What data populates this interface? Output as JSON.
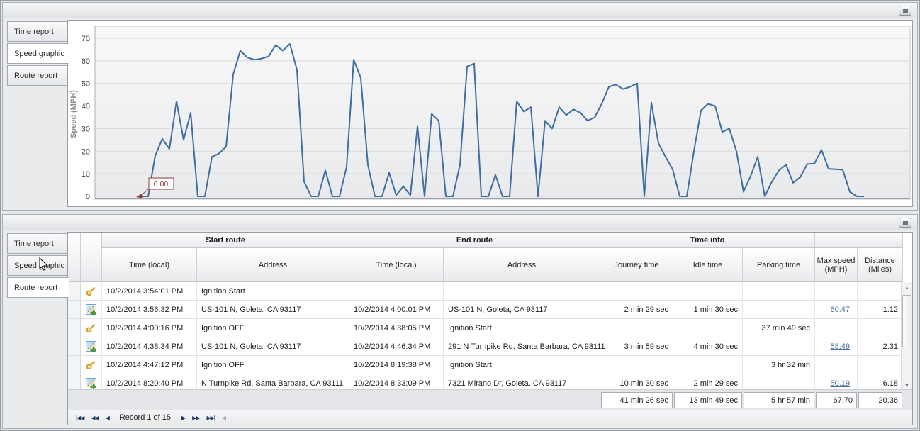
{
  "tabs": [
    "Time report",
    "Speed graphic",
    "Route report"
  ],
  "top_panel": {
    "active_tab": "Speed graphic"
  },
  "bottom_panel": {
    "active_tab": "Route report"
  },
  "chart_data": {
    "type": "line",
    "title": "",
    "xlabel": "",
    "ylabel": "Speed (MPH)",
    "yticks": [
      0,
      10,
      20,
      30,
      40,
      50,
      60,
      70
    ],
    "ylim": [
      0,
      72
    ],
    "grid": "horizontal",
    "legend": "none",
    "line_color": "#3e6d9f",
    "marker_color": "#8d3a35",
    "marker_label": "0.00",
    "marker_index": 0,
    "values": [
      0,
      0,
      18,
      25.5,
      21,
      42,
      25,
      37,
      0,
      0,
      17.5,
      19,
      22,
      54,
      64.5,
      61.5,
      60.5,
      61,
      62,
      67,
      64.5,
      67.5,
      56,
      6.5,
      0,
      0,
      11.5,
      0,
      0,
      13,
      60.5,
      52.5,
      14,
      0,
      0,
      10.5,
      0.5,
      4.5,
      0.5,
      31,
      0,
      36.5,
      33.5,
      0,
      0,
      14,
      57.5,
      58.8,
      0,
      0,
      9.5,
      0,
      0,
      42,
      37.5,
      39.5,
      0,
      33.5,
      30,
      39.5,
      36,
      38.5,
      37,
      33.5,
      35,
      41,
      48.5,
      49.5,
      47.5,
      48.5,
      50,
      0,
      41.5,
      23.5,
      17.5,
      12,
      0,
      0,
      20,
      38,
      41,
      40,
      28.5,
      30,
      20,
      2,
      9,
      17.5,
      0,
      6.5,
      11.5,
      14,
      6,
      8.5,
      14.3,
      14.5,
      20.6,
      12.2,
      12,
      11.8,
      2,
      0,
      0
    ]
  },
  "grid": {
    "groups": {
      "start": "Start route",
      "end": "End route",
      "time_info": "Time info",
      "blank": ""
    },
    "columns": {
      "start_time": "Time (local)",
      "start_address": "Address",
      "end_time": "Time (local)",
      "end_address": "Address",
      "journey": "Journey time",
      "idle": "Idle time",
      "parking": "Parking time",
      "max_speed": "Max speed (MPH)",
      "distance": "Distance (Miles)"
    },
    "rows": [
      {
        "icon": "key",
        "start_time": "10/2/2014 3:54:01 PM",
        "start_address": "Ignition Start",
        "end_time": "",
        "end_address": "",
        "journey": "",
        "idle": "",
        "parking": "",
        "max_speed": "",
        "distance": ""
      },
      {
        "icon": "route",
        "start_time": "10/2/2014 3:56:32 PM",
        "start_address": "US-101 N, Goleta, CA 93117",
        "end_time": "10/2/2014 4:00:01 PM",
        "end_address": "US-101 N, Goleta, CA 93117",
        "journey": "2 min 29 sec",
        "idle": "1 min 30 sec",
        "parking": "",
        "max_speed": "60.47",
        "distance": "1.12"
      },
      {
        "icon": "key",
        "start_time": "10/2/2014 4:00:16 PM",
        "start_address": "Ignition OFF",
        "end_time": "10/2/2014 4:38:05 PM",
        "end_address": "Ignition Start",
        "journey": "",
        "idle": "",
        "parking": "37 min 49 sec",
        "max_speed": "",
        "distance": ""
      },
      {
        "icon": "route",
        "start_time": "10/2/2014 4:38:34 PM",
        "start_address": "US-101 N, Goleta, CA 93117",
        "end_time": "10/2/2014 4:46:34 PM",
        "end_address": "291 N Turnpike Rd, Santa Barbara, CA 93111",
        "journey": "3 min 59 sec",
        "idle": "4 min 30 sec",
        "parking": "",
        "max_speed": "58.49",
        "distance": "2.31"
      },
      {
        "icon": "key",
        "start_time": "10/2/2014 4:47:12 PM",
        "start_address": "Ignition OFF",
        "end_time": "10/2/2014 8:19:38 PM",
        "end_address": "Ignition Start",
        "journey": "",
        "idle": "",
        "parking": "3 hr 32 min",
        "max_speed": "",
        "distance": ""
      },
      {
        "icon": "route",
        "start_time": "10/2/2014 8:20:40 PM",
        "start_address": "N Turnpike Rd, Santa Barbara, CA 93111",
        "end_time": "10/2/2014 8:33:09 PM",
        "end_address": "7321 Mirano Dr, Goleta, CA 93117",
        "journey": "10 min 30 sec",
        "idle": "2 min 29 sec",
        "parking": "",
        "max_speed": "50.19",
        "distance": "6.18"
      }
    ],
    "summary": {
      "journey": "41 min 26 sec",
      "idle": "13 min 49 sec",
      "parking": "5 hr 57 min",
      "max_speed": "67.70",
      "distance": "20.36"
    },
    "navigator": {
      "first": "|◀◀",
      "prev_page": "◀◀",
      "prev": "◀",
      "label": "Record 1 of 15",
      "next": "▶",
      "next_page": "▶▶",
      "last": "▶▶|",
      "h_left": "◀"
    }
  }
}
